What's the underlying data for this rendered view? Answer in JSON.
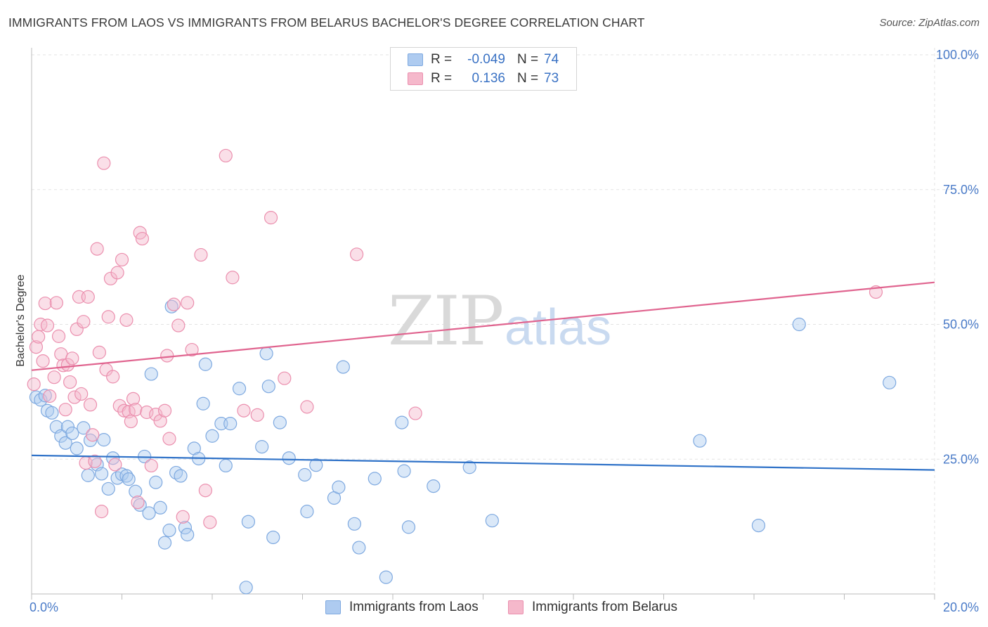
{
  "chart_data": {
    "type": "scatter",
    "title": "IMMIGRANTS FROM LAOS VS IMMIGRANTS FROM BELARUS BACHELOR'S DEGREE CORRELATION CHART",
    "source": "Source: ZipAtlas.com",
    "ylabel": "Bachelor's Degree",
    "xlabel": "",
    "xlim": [
      0,
      20
    ],
    "ylim": [
      0,
      100
    ],
    "x_tick_labels": [
      "0.0%",
      "20.0%"
    ],
    "y_tick_labels": [
      "100.0%",
      "75.0%",
      "50.0%",
      "25.0%"
    ],
    "y_ticks": [
      100,
      75,
      50,
      25
    ],
    "grid": true,
    "watermark": {
      "zip": "ZIP",
      "atlas": "atlas"
    },
    "legend_top": [
      {
        "r_label": "R =",
        "r_value": "-0.049",
        "n_label": "N =",
        "n_value": "74"
      },
      {
        "r_label": "R =",
        "r_value": "0.136",
        "n_label": "N =",
        "n_value": "73"
      }
    ],
    "colors": {
      "laos_fill": "#aecbf0",
      "laos_stroke": "#7ea9e0",
      "laos_line": "#2f72c8",
      "belarus_fill": "#f5b8cb",
      "belarus_stroke": "#eb8fae",
      "belarus_line": "#e0648f",
      "tick": "#4a7bc8",
      "grid": "#e3e3e3"
    },
    "series": [
      {
        "name": "Immigrants from Laos",
        "trend": {
          "x": [
            0,
            20
          ],
          "y": [
            25.7,
            23.0
          ]
        },
        "points": [
          [
            0.1,
            36.5
          ],
          [
            0.2,
            36.0
          ],
          [
            0.3,
            36.8
          ],
          [
            0.35,
            34.0
          ],
          [
            0.45,
            33.6
          ],
          [
            0.55,
            31.0
          ],
          [
            0.65,
            29.3
          ],
          [
            0.75,
            28.0
          ],
          [
            0.8,
            31.0
          ],
          [
            0.9,
            29.8
          ],
          [
            1.0,
            27.0
          ],
          [
            1.15,
            30.8
          ],
          [
            1.25,
            22.0
          ],
          [
            1.3,
            28.5
          ],
          [
            1.45,
            24.0
          ],
          [
            1.55,
            22.3
          ],
          [
            1.6,
            28.6
          ],
          [
            1.7,
            19.5
          ],
          [
            1.8,
            25.2
          ],
          [
            1.9,
            21.5
          ],
          [
            2.0,
            22.2
          ],
          [
            2.1,
            21.9
          ],
          [
            2.15,
            21.3
          ],
          [
            2.3,
            19.0
          ],
          [
            2.4,
            16.5
          ],
          [
            2.5,
            25.5
          ],
          [
            2.6,
            15.0
          ],
          [
            2.65,
            40.8
          ],
          [
            2.75,
            20.7
          ],
          [
            2.85,
            16.0
          ],
          [
            2.95,
            9.5
          ],
          [
            3.05,
            11.8
          ],
          [
            3.1,
            53.3
          ],
          [
            3.2,
            22.5
          ],
          [
            3.3,
            21.9
          ],
          [
            3.4,
            12.3
          ],
          [
            3.45,
            11.0
          ],
          [
            3.6,
            27.0
          ],
          [
            3.7,
            25.1
          ],
          [
            3.8,
            35.3
          ],
          [
            3.85,
            42.6
          ],
          [
            4.0,
            29.3
          ],
          [
            4.2,
            31.6
          ],
          [
            4.3,
            23.8
          ],
          [
            4.4,
            31.6
          ],
          [
            4.6,
            38.1
          ],
          [
            4.75,
            1.2
          ],
          [
            4.8,
            13.4
          ],
          [
            5.1,
            27.3
          ],
          [
            5.2,
            44.6
          ],
          [
            5.25,
            38.5
          ],
          [
            5.35,
            10.5
          ],
          [
            5.5,
            31.8
          ],
          [
            5.7,
            25.2
          ],
          [
            6.05,
            22.1
          ],
          [
            6.1,
            15.3
          ],
          [
            6.3,
            23.9
          ],
          [
            6.7,
            17.8
          ],
          [
            6.8,
            19.8
          ],
          [
            6.9,
            42.1
          ],
          [
            7.15,
            13.0
          ],
          [
            7.25,
            8.6
          ],
          [
            7.6,
            21.4
          ],
          [
            7.85,
            3.1
          ],
          [
            8.2,
            31.8
          ],
          [
            8.25,
            22.8
          ],
          [
            8.35,
            12.4
          ],
          [
            8.9,
            20.0
          ],
          [
            9.7,
            23.5
          ],
          [
            10.2,
            13.6
          ],
          [
            14.8,
            28.4
          ],
          [
            16.1,
            12.7
          ],
          [
            17.0,
            50.0
          ],
          [
            19.0,
            39.2
          ]
        ]
      },
      {
        "name": "Immigrants from Belarus",
        "trend": {
          "x": [
            0,
            20
          ],
          "y": [
            41.5,
            57.8
          ]
        },
        "points": [
          [
            0.05,
            38.9
          ],
          [
            0.1,
            45.8
          ],
          [
            0.15,
            47.7
          ],
          [
            0.2,
            50.0
          ],
          [
            0.25,
            43.2
          ],
          [
            0.3,
            53.9
          ],
          [
            0.35,
            49.8
          ],
          [
            0.4,
            36.7
          ],
          [
            0.5,
            40.2
          ],
          [
            0.55,
            54.0
          ],
          [
            0.6,
            47.8
          ],
          [
            0.65,
            44.5
          ],
          [
            0.7,
            42.4
          ],
          [
            0.75,
            34.2
          ],
          [
            0.8,
            42.5
          ],
          [
            0.85,
            39.3
          ],
          [
            0.9,
            43.7
          ],
          [
            0.95,
            36.5
          ],
          [
            1.0,
            49.1
          ],
          [
            1.05,
            55.1
          ],
          [
            1.1,
            37.1
          ],
          [
            1.15,
            50.5
          ],
          [
            1.2,
            24.3
          ],
          [
            1.25,
            55.1
          ],
          [
            1.3,
            35.1
          ],
          [
            1.35,
            29.5
          ],
          [
            1.4,
            24.6
          ],
          [
            1.45,
            64.0
          ],
          [
            1.5,
            44.8
          ],
          [
            1.55,
            15.3
          ],
          [
            1.6,
            79.9
          ],
          [
            1.65,
            41.6
          ],
          [
            1.7,
            51.4
          ],
          [
            1.75,
            58.5
          ],
          [
            1.8,
            40.3
          ],
          [
            1.85,
            24.0
          ],
          [
            1.9,
            59.6
          ],
          [
            1.95,
            34.9
          ],
          [
            2.0,
            62.0
          ],
          [
            2.05,
            34.0
          ],
          [
            2.1,
            50.8
          ],
          [
            2.15,
            33.8
          ],
          [
            2.2,
            32.0
          ],
          [
            2.25,
            36.2
          ],
          [
            2.3,
            34.2
          ],
          [
            2.35,
            17.0
          ],
          [
            2.4,
            67.0
          ],
          [
            2.45,
            65.9
          ],
          [
            2.55,
            33.7
          ],
          [
            2.65,
            23.8
          ],
          [
            2.75,
            33.3
          ],
          [
            2.85,
            32.1
          ],
          [
            2.95,
            34.0
          ],
          [
            3.0,
            44.2
          ],
          [
            3.05,
            28.8
          ],
          [
            3.15,
            53.7
          ],
          [
            3.25,
            49.8
          ],
          [
            3.35,
            14.3
          ],
          [
            3.45,
            54.0
          ],
          [
            3.55,
            45.3
          ],
          [
            3.75,
            62.9
          ],
          [
            3.85,
            19.2
          ],
          [
            3.95,
            13.3
          ],
          [
            4.3,
            81.3
          ],
          [
            4.45,
            58.7
          ],
          [
            4.7,
            34.0
          ],
          [
            5.0,
            33.2
          ],
          [
            5.3,
            69.8
          ],
          [
            5.6,
            40.0
          ],
          [
            6.1,
            34.7
          ],
          [
            7.2,
            63.0
          ],
          [
            8.5,
            33.5
          ],
          [
            18.7,
            56.0
          ]
        ]
      }
    ]
  }
}
